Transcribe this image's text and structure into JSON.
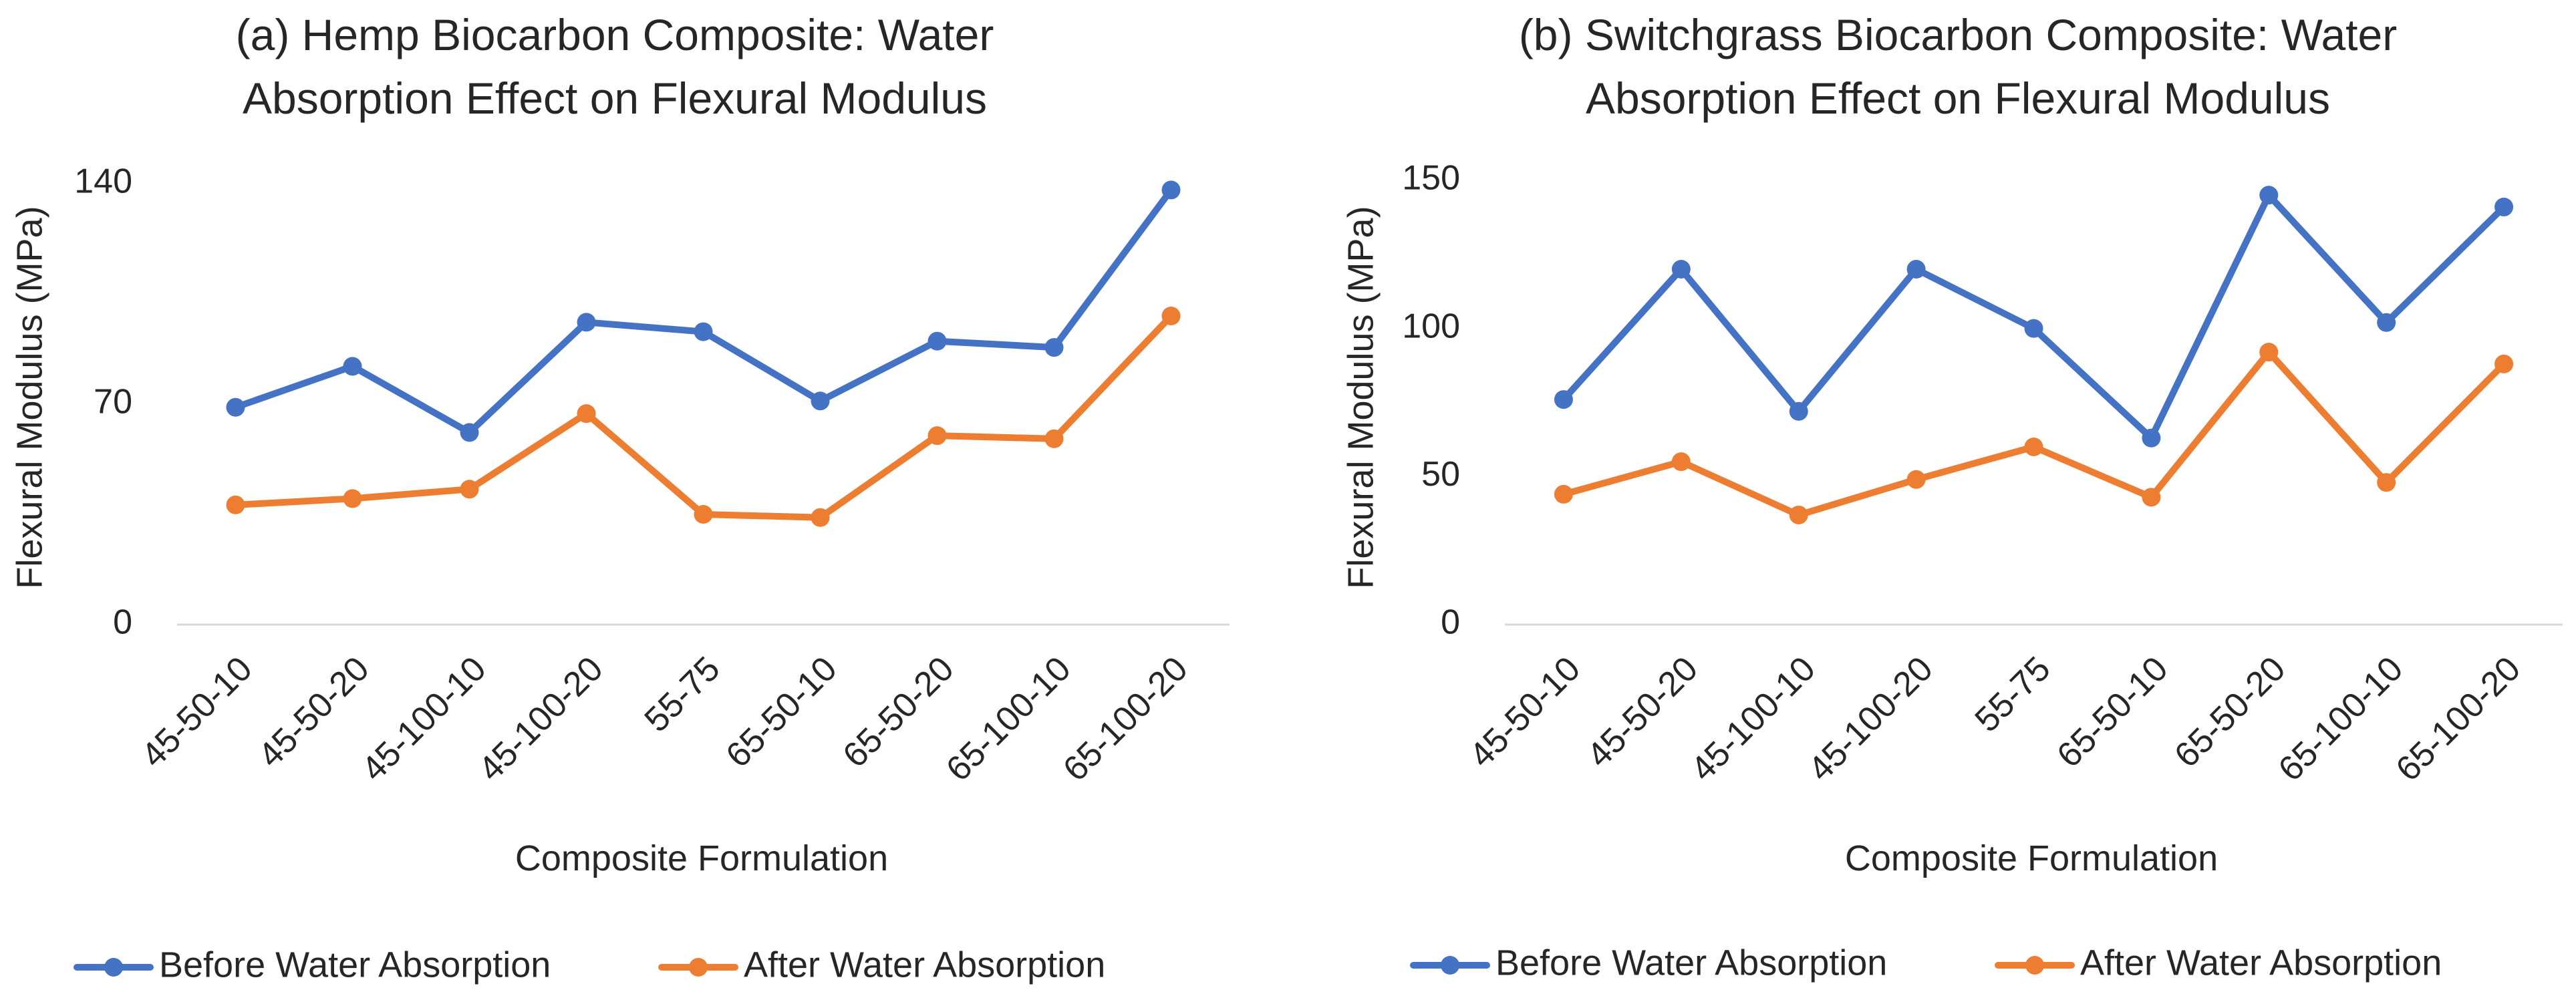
{
  "chart_data": [
    {
      "type": "line",
      "title": "(a) Hemp Biocarbon Composite: Water Absorption Effect on Flexural Modulus",
      "title_lines": [
        "(a) Hemp Biocarbon Composite: Water",
        "Absorption Effect on Flexural Modulus"
      ],
      "xlabel": "Composite Formulation",
      "ylabel": "Flexural Modulus (MPa)",
      "ylim": [
        0,
        140
      ],
      "yticks": [
        0,
        70,
        140
      ],
      "grid": false,
      "legend_position": "bottom",
      "categories": [
        "45-50-10",
        "45-50-20",
        "45-100-10",
        "45-100-20",
        "55-75",
        "65-50-10",
        "65-50-20",
        "65-100-10",
        "65-100-20"
      ],
      "series": [
        {
          "name": "Before Water Absorption",
          "color": "#4472c4",
          "values": [
            69,
            82,
            61,
            96,
            93,
            71,
            90,
            88,
            138
          ]
        },
        {
          "name": "After Water Absorption",
          "color": "#ed7d31",
          "values": [
            38,
            40,
            43,
            67,
            35,
            34,
            60,
            59,
            98
          ]
        }
      ]
    },
    {
      "type": "line",
      "title": "(b) Switchgrass Biocarbon Composite: Water Absorption Effect on Flexural Modulus",
      "title_lines": [
        "(b) Switchgrass Biocarbon Composite: Water",
        "Absorption Effect on Flexural Modulus"
      ],
      "xlabel": "Composite Formulation",
      "ylabel": "Flexural Modulus (MPa)",
      "ylim": [
        0,
        150
      ],
      "yticks": [
        0,
        50,
        100,
        150
      ],
      "grid": false,
      "legend_position": "bottom",
      "categories": [
        "45-50-10",
        "45-50-20",
        "45-100-10",
        "45-100-20",
        "55-75",
        "65-50-10",
        "65-50-20",
        "65-100-10",
        "65-100-20"
      ],
      "series": [
        {
          "name": "Before Water Absorption",
          "color": "#4472c4",
          "values": [
            76,
            120,
            72,
            120,
            100,
            63,
            145,
            102,
            141
          ]
        },
        {
          "name": "After Water Absorption",
          "color": "#ed7d31",
          "values": [
            44,
            55,
            37,
            49,
            60,
            43,
            92,
            48,
            88
          ]
        }
      ]
    }
  ]
}
